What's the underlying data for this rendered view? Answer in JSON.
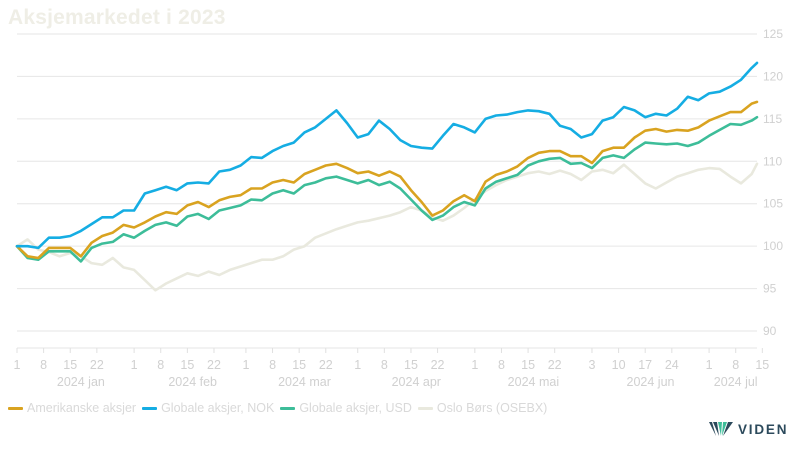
{
  "title": "Aksjemarkedet i 2023",
  "logo_text": "VIDEN",
  "chart_data": {
    "type": "line",
    "title": "Aksjemarkedet i 2023",
    "xlabel": "",
    "ylabel": "",
    "ylim": [
      88,
      125
    ],
    "yticks": [
      90,
      95,
      100,
      105,
      110,
      115,
      120,
      125
    ],
    "xlim": [
      0,
      139
    ],
    "grid": "horizontal",
    "x_ticks": [
      {
        "x": 0,
        "label": "1"
      },
      {
        "x": 5,
        "label": "8"
      },
      {
        "x": 10,
        "label": "15"
      },
      {
        "x": 15,
        "label": "22"
      },
      {
        "x": 22,
        "label": "1"
      },
      {
        "x": 27,
        "label": "8"
      },
      {
        "x": 32,
        "label": "15"
      },
      {
        "x": 37,
        "label": "22"
      },
      {
        "x": 43,
        "label": "1"
      },
      {
        "x": 48,
        "label": "8"
      },
      {
        "x": 53,
        "label": "15"
      },
      {
        "x": 58,
        "label": "22"
      },
      {
        "x": 64,
        "label": "1"
      },
      {
        "x": 69,
        "label": "8"
      },
      {
        "x": 74,
        "label": "15"
      },
      {
        "x": 79,
        "label": "22"
      },
      {
        "x": 86,
        "label": "1"
      },
      {
        "x": 91,
        "label": "8"
      },
      {
        "x": 96,
        "label": "15"
      },
      {
        "x": 101,
        "label": "22"
      },
      {
        "x": 108,
        "label": "3"
      },
      {
        "x": 113,
        "label": "10"
      },
      {
        "x": 118,
        "label": "17"
      },
      {
        "x": 123,
        "label": "24"
      },
      {
        "x": 130,
        "label": "1"
      },
      {
        "x": 135,
        "label": "8"
      },
      {
        "x": 140,
        "label": "15"
      }
    ],
    "month_labels": [
      {
        "x": 12,
        "label": "2024 jan"
      },
      {
        "x": 33,
        "label": "2024 feb"
      },
      {
        "x": 54,
        "label": "2024 mar"
      },
      {
        "x": 75,
        "label": "2024 apr"
      },
      {
        "x": 97,
        "label": "2024 mai"
      },
      {
        "x": 119,
        "label": "2024 jun"
      },
      {
        "x": 135,
        "label": "2024 jul"
      }
    ],
    "series": [
      {
        "name": "Oslo Børs (OSEBX)",
        "color": "#e9e9de",
        "points": [
          [
            0,
            100
          ],
          [
            2,
            100.8
          ],
          [
            4,
            99.6
          ],
          [
            6,
            99.3
          ],
          [
            8,
            98.8
          ],
          [
            10,
            99.2
          ],
          [
            12,
            98.8
          ],
          [
            14,
            98
          ],
          [
            16,
            97.8
          ],
          [
            18,
            98.6
          ],
          [
            20,
            97.5
          ],
          [
            22,
            97.2
          ],
          [
            24,
            96
          ],
          [
            26,
            94.8
          ],
          [
            28,
            95.6
          ],
          [
            30,
            96.2
          ],
          [
            32,
            96.8
          ],
          [
            34,
            96.5
          ],
          [
            36,
            97
          ],
          [
            38,
            96.6
          ],
          [
            40,
            97.2
          ],
          [
            42,
            97.6
          ],
          [
            44,
            98
          ],
          [
            46,
            98.4
          ],
          [
            48,
            98.4
          ],
          [
            50,
            98.8
          ],
          [
            52,
            99.6
          ],
          [
            54,
            100
          ],
          [
            56,
            101
          ],
          [
            58,
            101.5
          ],
          [
            60,
            102
          ],
          [
            62,
            102.4
          ],
          [
            64,
            102.8
          ],
          [
            66,
            103
          ],
          [
            68,
            103.3
          ],
          [
            70,
            103.6
          ],
          [
            72,
            104
          ],
          [
            74,
            104.6
          ],
          [
            76,
            104.2
          ],
          [
            78,
            103.4
          ],
          [
            80,
            103
          ],
          [
            82,
            103.6
          ],
          [
            84,
            104.5
          ],
          [
            86,
            105.5
          ],
          [
            88,
            106.5
          ],
          [
            90,
            107.2
          ],
          [
            92,
            107.8
          ],
          [
            94,
            108.2
          ],
          [
            96,
            108.6
          ],
          [
            98,
            108.8
          ],
          [
            100,
            108.5
          ],
          [
            102,
            108.9
          ],
          [
            104,
            108.5
          ],
          [
            106,
            107.8
          ],
          [
            108,
            108.8
          ],
          [
            110,
            109
          ],
          [
            112,
            108.6
          ],
          [
            114,
            109.6
          ],
          [
            116,
            108.5
          ],
          [
            118,
            107.4
          ],
          [
            120,
            106.8
          ],
          [
            122,
            107.5
          ],
          [
            124,
            108.2
          ],
          [
            126,
            108.6
          ],
          [
            128,
            109
          ],
          [
            130,
            109.2
          ],
          [
            132,
            109.1
          ],
          [
            134,
            108.2
          ],
          [
            136,
            107.4
          ],
          [
            138,
            108.5
          ],
          [
            139,
            109.7
          ]
        ]
      },
      {
        "name": "Globale aksjer, USD",
        "color": "#3dbd99",
        "points": [
          [
            0,
            100
          ],
          [
            2,
            98.6
          ],
          [
            4,
            98.4
          ],
          [
            6,
            99.4
          ],
          [
            8,
            99.4
          ],
          [
            10,
            99.4
          ],
          [
            12,
            98.2
          ],
          [
            14,
            99.8
          ],
          [
            16,
            100.3
          ],
          [
            18,
            100.5
          ],
          [
            20,
            101.4
          ],
          [
            22,
            101
          ],
          [
            24,
            101.8
          ],
          [
            26,
            102.5
          ],
          [
            28,
            102.8
          ],
          [
            30,
            102.4
          ],
          [
            32,
            103.5
          ],
          [
            34,
            103.8
          ],
          [
            36,
            103.2
          ],
          [
            38,
            104.2
          ],
          [
            40,
            104.5
          ],
          [
            42,
            104.8
          ],
          [
            44,
            105.5
          ],
          [
            46,
            105.4
          ],
          [
            48,
            106.2
          ],
          [
            50,
            106.6
          ],
          [
            52,
            106.2
          ],
          [
            54,
            107.2
          ],
          [
            56,
            107.5
          ],
          [
            58,
            108
          ],
          [
            60,
            108.2
          ],
          [
            62,
            107.8
          ],
          [
            64,
            107.4
          ],
          [
            66,
            107.8
          ],
          [
            68,
            107.2
          ],
          [
            70,
            107.6
          ],
          [
            72,
            106.8
          ],
          [
            74,
            105.5
          ],
          [
            76,
            104.2
          ],
          [
            78,
            103.1
          ],
          [
            80,
            103.6
          ],
          [
            82,
            104.6
          ],
          [
            84,
            105.2
          ],
          [
            86,
            104.8
          ],
          [
            88,
            106.8
          ],
          [
            90,
            107.6
          ],
          [
            92,
            108
          ],
          [
            94,
            108.4
          ],
          [
            96,
            109.5
          ],
          [
            98,
            110
          ],
          [
            100,
            110.3
          ],
          [
            102,
            110.4
          ],
          [
            104,
            109.7
          ],
          [
            106,
            109.8
          ],
          [
            108,
            109.2
          ],
          [
            110,
            110.4
          ],
          [
            112,
            110.7
          ],
          [
            114,
            110.4
          ],
          [
            116,
            111.4
          ],
          [
            118,
            112.2
          ],
          [
            120,
            112.1
          ],
          [
            122,
            112
          ],
          [
            124,
            112.1
          ],
          [
            126,
            111.8
          ],
          [
            128,
            112.2
          ],
          [
            130,
            113
          ],
          [
            132,
            113.7
          ],
          [
            134,
            114.4
          ],
          [
            136,
            114.3
          ],
          [
            138,
            114.8
          ],
          [
            139,
            115.2
          ]
        ]
      },
      {
        "name": "Amerikanske aksjer",
        "color": "#d9a320",
        "points": [
          [
            0,
            100
          ],
          [
            2,
            98.8
          ],
          [
            4,
            98.6
          ],
          [
            6,
            99.8
          ],
          [
            8,
            99.8
          ],
          [
            10,
            99.8
          ],
          [
            12,
            98.8
          ],
          [
            14,
            100.4
          ],
          [
            16,
            101.2
          ],
          [
            18,
            101.6
          ],
          [
            20,
            102.5
          ],
          [
            22,
            102.2
          ],
          [
            24,
            102.8
          ],
          [
            26,
            103.5
          ],
          [
            28,
            104
          ],
          [
            30,
            103.8
          ],
          [
            32,
            104.8
          ],
          [
            34,
            105.2
          ],
          [
            36,
            104.6
          ],
          [
            38,
            105.4
          ],
          [
            40,
            105.8
          ],
          [
            42,
            106
          ],
          [
            44,
            106.8
          ],
          [
            46,
            106.8
          ],
          [
            48,
            107.5
          ],
          [
            50,
            107.8
          ],
          [
            52,
            107.5
          ],
          [
            54,
            108.5
          ],
          [
            56,
            109
          ],
          [
            58,
            109.5
          ],
          [
            60,
            109.7
          ],
          [
            62,
            109.2
          ],
          [
            64,
            108.6
          ],
          [
            66,
            108.8
          ],
          [
            68,
            108.3
          ],
          [
            70,
            108.8
          ],
          [
            72,
            108.2
          ],
          [
            74,
            106.6
          ],
          [
            76,
            105.2
          ],
          [
            78,
            103.6
          ],
          [
            80,
            104.2
          ],
          [
            82,
            105.3
          ],
          [
            84,
            106
          ],
          [
            86,
            105.3
          ],
          [
            88,
            107.6
          ],
          [
            90,
            108.4
          ],
          [
            92,
            108.8
          ],
          [
            94,
            109.4
          ],
          [
            96,
            110.4
          ],
          [
            98,
            111
          ],
          [
            100,
            111.2
          ],
          [
            102,
            111.2
          ],
          [
            104,
            110.6
          ],
          [
            106,
            110.6
          ],
          [
            108,
            109.8
          ],
          [
            110,
            111.2
          ],
          [
            112,
            111.6
          ],
          [
            114,
            111.6
          ],
          [
            116,
            112.8
          ],
          [
            118,
            113.6
          ],
          [
            120,
            113.8
          ],
          [
            122,
            113.5
          ],
          [
            124,
            113.7
          ],
          [
            126,
            113.6
          ],
          [
            128,
            114
          ],
          [
            130,
            114.8
          ],
          [
            132,
            115.3
          ],
          [
            134,
            115.8
          ],
          [
            136,
            115.8
          ],
          [
            138,
            116.8
          ],
          [
            139,
            117
          ]
        ]
      },
      {
        "name": "Globale aksjer, NOK",
        "color": "#15ade3",
        "points": [
          [
            0,
            100
          ],
          [
            2,
            100
          ],
          [
            4,
            99.8
          ],
          [
            6,
            101
          ],
          [
            8,
            101
          ],
          [
            10,
            101.2
          ],
          [
            12,
            101.8
          ],
          [
            14,
            102.6
          ],
          [
            16,
            103.4
          ],
          [
            18,
            103.4
          ],
          [
            20,
            104.2
          ],
          [
            22,
            104.2
          ],
          [
            24,
            106.2
          ],
          [
            26,
            106.6
          ],
          [
            28,
            107
          ],
          [
            30,
            106.6
          ],
          [
            32,
            107.4
          ],
          [
            34,
            107.5
          ],
          [
            36,
            107.4
          ],
          [
            38,
            108.8
          ],
          [
            40,
            109
          ],
          [
            42,
            109.5
          ],
          [
            44,
            110.5
          ],
          [
            46,
            110.4
          ],
          [
            48,
            111.2
          ],
          [
            50,
            111.8
          ],
          [
            52,
            112.2
          ],
          [
            54,
            113.4
          ],
          [
            56,
            114
          ],
          [
            58,
            115
          ],
          [
            60,
            116
          ],
          [
            62,
            114.5
          ],
          [
            64,
            112.8
          ],
          [
            66,
            113.2
          ],
          [
            68,
            114.8
          ],
          [
            70,
            113.8
          ],
          [
            72,
            112.5
          ],
          [
            74,
            111.8
          ],
          [
            76,
            111.6
          ],
          [
            78,
            111.5
          ],
          [
            80,
            113
          ],
          [
            82,
            114.4
          ],
          [
            84,
            114
          ],
          [
            86,
            113.4
          ],
          [
            88,
            115
          ],
          [
            90,
            115.4
          ],
          [
            92,
            115.5
          ],
          [
            94,
            115.8
          ],
          [
            96,
            116
          ],
          [
            98,
            115.9
          ],
          [
            100,
            115.6
          ],
          [
            102,
            114.2
          ],
          [
            104,
            113.8
          ],
          [
            106,
            112.8
          ],
          [
            108,
            113.2
          ],
          [
            110,
            114.8
          ],
          [
            112,
            115.2
          ],
          [
            114,
            116.4
          ],
          [
            116,
            116
          ],
          [
            118,
            115.2
          ],
          [
            120,
            115.6
          ],
          [
            122,
            115.4
          ],
          [
            124,
            116.2
          ],
          [
            126,
            117.6
          ],
          [
            128,
            117.2
          ],
          [
            130,
            118
          ],
          [
            132,
            118.2
          ],
          [
            134,
            118.8
          ],
          [
            136,
            119.6
          ],
          [
            138,
            121
          ],
          [
            139,
            121.6
          ]
        ]
      }
    ],
    "legend": [
      {
        "name": "Amerikanske aksjer",
        "color": "#d9a320"
      },
      {
        "name": "Globale aksjer, NOK",
        "color": "#15ade3"
      },
      {
        "name": "Globale aksjer, USD",
        "color": "#3dbd99"
      },
      {
        "name": "Oslo Børs (OSEBX)",
        "color": "#e9e9de"
      }
    ]
  }
}
